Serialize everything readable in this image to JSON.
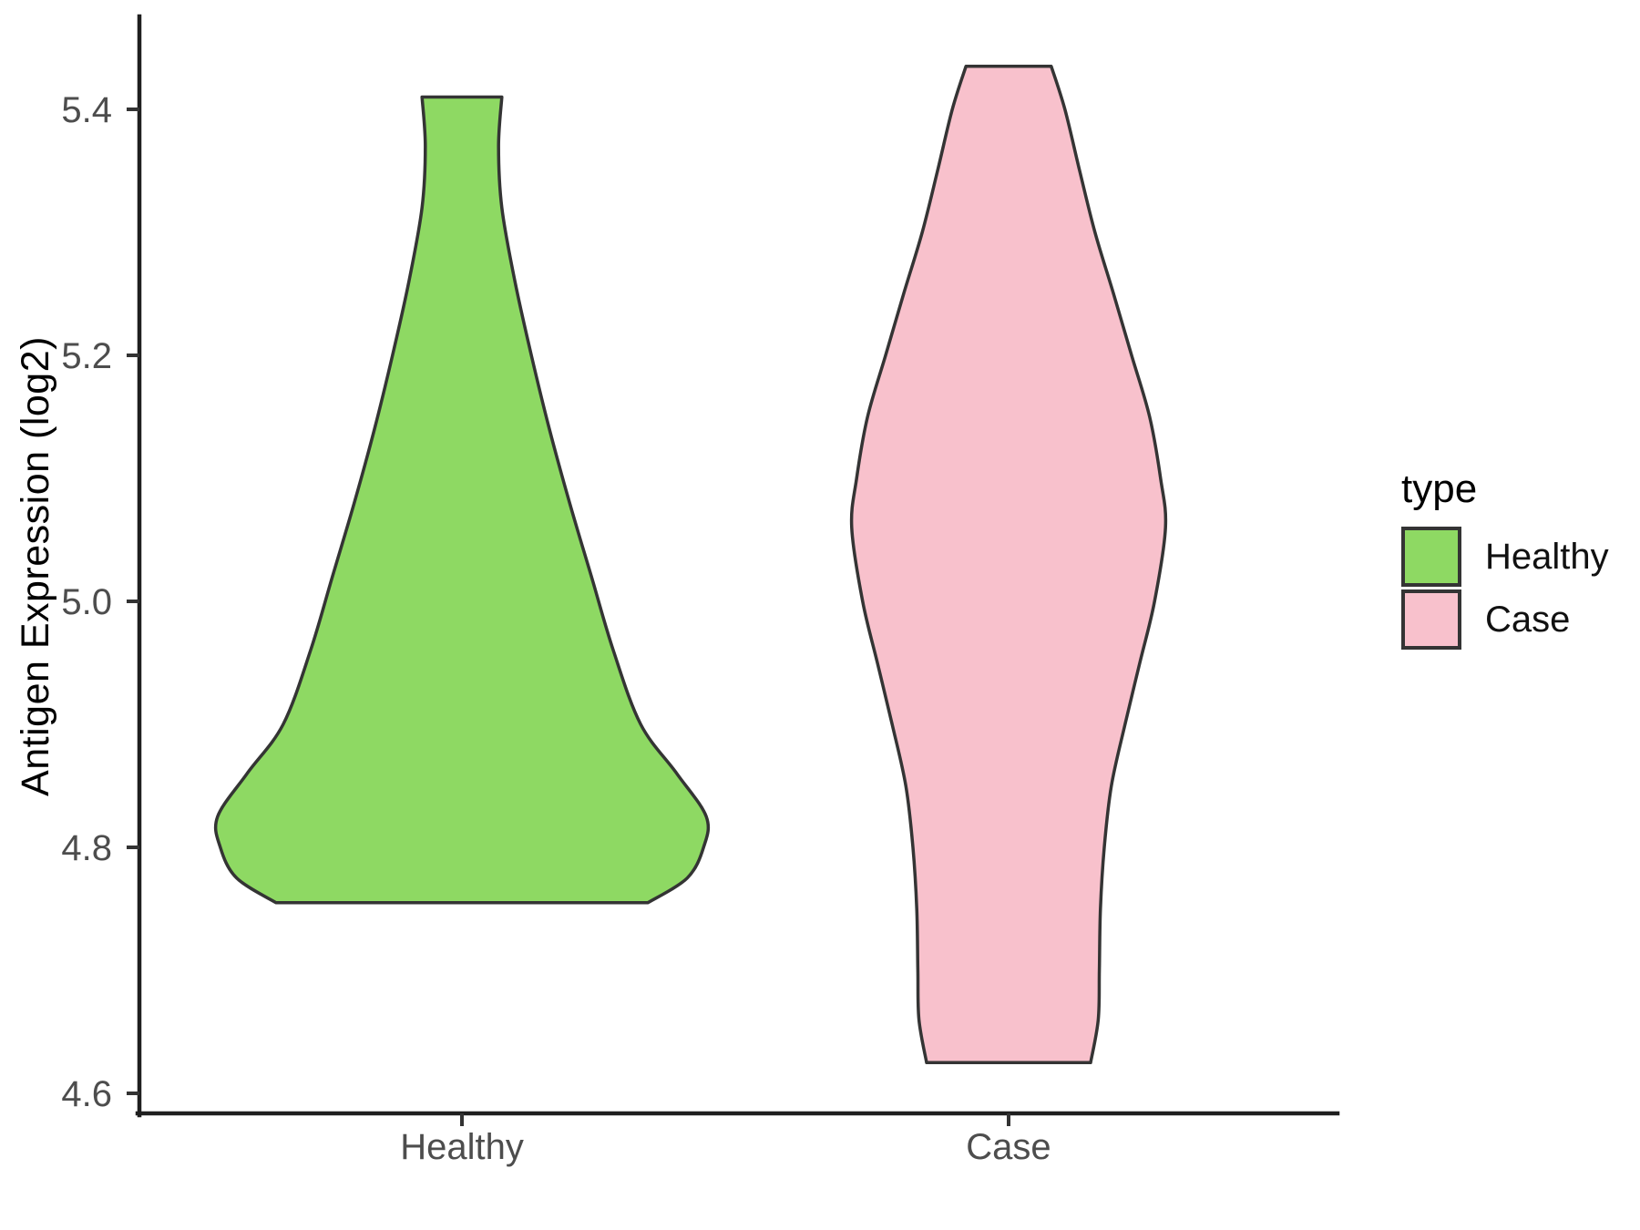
{
  "figure": {
    "background": "#ffffff",
    "outline_color": "#343434",
    "axis_color": "#1f1f1f",
    "tick_label_color": "#4d4d4d"
  },
  "chart_data": {
    "type": "violin",
    "title": "",
    "xlabel": "",
    "ylabel": "Antigen Expression (log2)",
    "categories": [
      "Healthy",
      "Case"
    ],
    "x_axis": {
      "tick_labels": [
        "Healthy",
        "Case"
      ]
    },
    "y_axis": {
      "ticks": [
        5.4,
        5.2,
        5.0,
        4.8,
        4.6
      ],
      "tick_labels": [
        "5.4",
        "5.2",
        "5.0",
        "4.8",
        "4.6"
      ],
      "range_shown": [
        4.58,
        5.47
      ],
      "grid": false
    },
    "legend": {
      "title": "type",
      "position": "right",
      "entries": [
        {
          "label": "Healthy",
          "color": "#8ed963"
        },
        {
          "label": "Case",
          "color": "#f8c1cc"
        }
      ]
    },
    "series": [
      {
        "name": "Healthy",
        "fill": "#8ed963",
        "outline": "#343434",
        "center": 1,
        "value_range": [
          4.755,
          5.41
        ],
        "profile_v_halfwidth": [
          [
            5.41,
            0.073
          ],
          [
            5.37,
            0.067
          ],
          [
            5.32,
            0.073
          ],
          [
            5.26,
            0.097
          ],
          [
            5.2,
            0.127
          ],
          [
            5.14,
            0.16
          ],
          [
            5.08,
            0.197
          ],
          [
            5.02,
            0.237
          ],
          [
            4.96,
            0.277
          ],
          [
            4.9,
            0.327
          ],
          [
            4.86,
            0.393
          ],
          [
            4.825,
            0.447
          ],
          [
            4.8,
            0.442
          ],
          [
            4.775,
            0.412
          ],
          [
            4.755,
            0.34
          ]
        ]
      },
      {
        "name": "Case",
        "fill": "#f8c1cc",
        "outline": "#343434",
        "center": 2,
        "value_range": [
          4.625,
          5.435
        ],
        "profile_v_halfwidth": [
          [
            5.435,
            0.078
          ],
          [
            5.4,
            0.103
          ],
          [
            5.35,
            0.13
          ],
          [
            5.3,
            0.158
          ],
          [
            5.25,
            0.192
          ],
          [
            5.2,
            0.225
          ],
          [
            5.15,
            0.258
          ],
          [
            5.1,
            0.278
          ],
          [
            5.06,
            0.287
          ],
          [
            5.0,
            0.267
          ],
          [
            4.95,
            0.24
          ],
          [
            4.9,
            0.213
          ],
          [
            4.85,
            0.188
          ],
          [
            4.8,
            0.175
          ],
          [
            4.75,
            0.168
          ],
          [
            4.7,
            0.166
          ],
          [
            4.66,
            0.164
          ],
          [
            4.625,
            0.15
          ]
        ]
      }
    ]
  }
}
